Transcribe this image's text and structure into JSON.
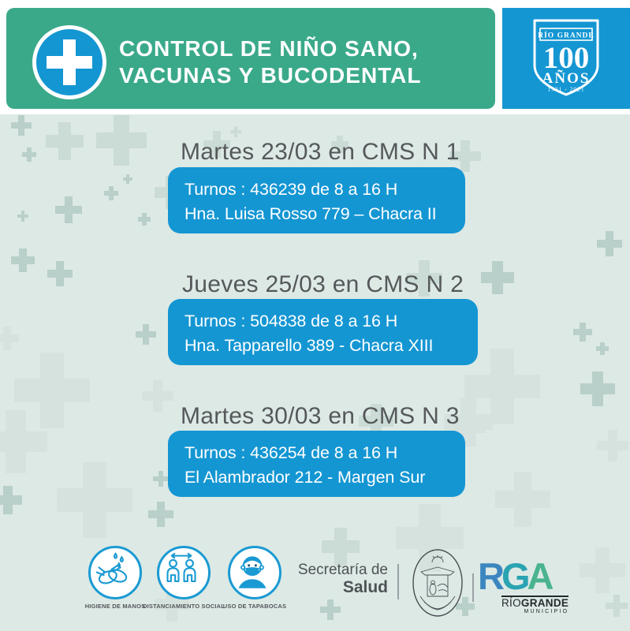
{
  "header": {
    "title_line1": "CONTROL DE NIÑO SANO,",
    "title_line2": "VACUNAS Y BUCODENTAL"
  },
  "centennial_badge": {
    "city": "RÍO GRANDE",
    "number": "100",
    "years_label": "AÑOS",
    "period": "1921 - 2021"
  },
  "schedule": [
    {
      "heading": "Martes 23/03 en CMS N 1",
      "line1": "Turnos : 436239 de 8 a 16 H",
      "line2": "Hna. Luisa Rosso 779 – Chacra II"
    },
    {
      "heading": "Jueves 25/03 en CMS N 2",
      "line1": "Turnos : 504838 de 8 a 16 H",
      "line2": "Hna. Tapparello 389 - Chacra XIII"
    },
    {
      "heading": "Martes 30/03 en CMS N 3",
      "line1": "Turnos : 436254 de 8 a 16 H",
      "line2": "El Alambrador 212 - Margen Sur"
    }
  ],
  "safety_icons": [
    {
      "icon": "hand-washing-icon",
      "label": "HIGIENE DE MANOS"
    },
    {
      "icon": "social-distancing-icon",
      "label": "DISTANCIAMIENTO SOCIAL"
    },
    {
      "icon": "face-mask-icon",
      "label": "USO DE TAPABOCAS"
    }
  ],
  "footer": {
    "secretary_line1": "Secretaría de",
    "secretary_line2": "Salud",
    "logo": {
      "letter_r": "R",
      "letter_g": "G",
      "letter_a": "A",
      "name_regular": "RÍO",
      "name_bold": "GRANDE",
      "subtitle": "MUNICIPIO"
    }
  },
  "colors": {
    "header_green": "#3aa98a",
    "brand_blue": "#1496d3",
    "background": "#dde9e5",
    "heading_gray": "#55585b",
    "rga_r": "#3c86bf",
    "rga_g": "#2aa3b2",
    "rga_a": "#49b48f"
  }
}
